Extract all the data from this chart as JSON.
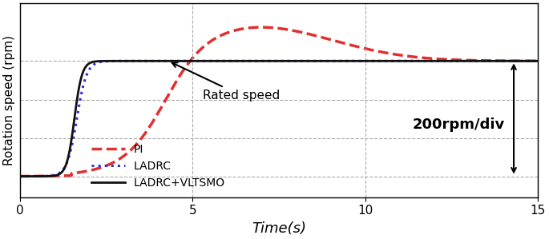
{
  "xlabel": "Time(s)",
  "ylabel": "Rotation speed (rpm)",
  "xlim": [
    0,
    15
  ],
  "ylim": [
    -0.18,
    1.5
  ],
  "xticks": [
    0,
    5,
    10,
    15
  ],
  "rated_speed": 1.0,
  "rated_speed_label": "Rated speed",
  "scale_label": "200rpm/div",
  "grid_color": "#aaaaaa",
  "pi_color": "#e03030",
  "ladrc_color": "#3030e0",
  "ladrc_vltsmo_color": "#111111",
  "background_color": "#ffffff",
  "legend_labels": [
    "PI",
    "LADRC",
    "LADRC+VLTSMO"
  ]
}
